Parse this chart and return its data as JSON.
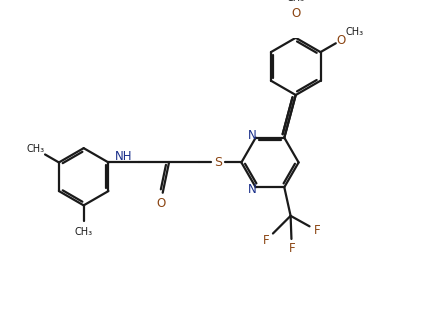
{
  "background": "#ffffff",
  "bond_color": "#1a1a1a",
  "N_color": "#1a2f8a",
  "O_color": "#8B4513",
  "S_color": "#8B4513",
  "F_color": "#8B4513",
  "lw": 1.6,
  "dbo": 0.06,
  "fs": 8.5,
  "figw": 4.45,
  "figh": 3.24,
  "dpi": 100,
  "xlim": [
    0,
    9.5
  ],
  "ylim": [
    0,
    6.8
  ]
}
